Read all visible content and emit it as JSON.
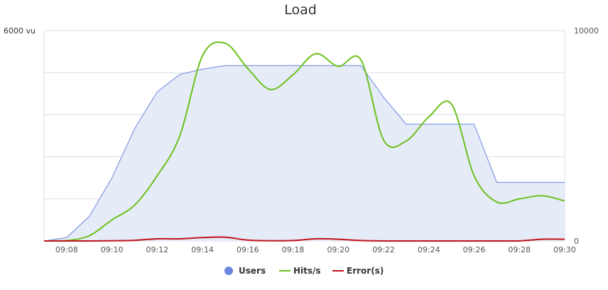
{
  "chart_data": {
    "type": "line",
    "title": "Load",
    "x": [
      "09:07",
      "09:08",
      "09:09",
      "09:10",
      "09:11",
      "09:12",
      "09:13",
      "09:14",
      "09:15",
      "09:16",
      "09:17",
      "09:18",
      "09:19",
      "09:20",
      "09:21",
      "09:22",
      "09:23",
      "09:24",
      "09:25",
      "09:26",
      "09:27",
      "09:28",
      "09:29",
      "09:30"
    ],
    "x_tick_labels": [
      "09:08",
      "09:10",
      "09:12",
      "09:14",
      "09:16",
      "09:18",
      "09:20",
      "09:22",
      "09:24",
      "09:26",
      "09:28",
      "09:30"
    ],
    "y_left": {
      "max_label": "6000 vu",
      "min": 0,
      "max": 6000
    },
    "y_right": {
      "max_label": "10000",
      "min_label": "0",
      "min": 0,
      "max": 10000
    },
    "grid": true,
    "legend_position": "bottom-center",
    "series": [
      {
        "name": "Users",
        "axis": "left",
        "style": "area",
        "color": "#6b86e0",
        "fill": "#e6ebf8",
        "values": [
          0,
          100,
          700,
          1800,
          3200,
          4250,
          4750,
          4900,
          5000,
          5000,
          5000,
          5000,
          5000,
          5000,
          5000,
          4100,
          3330,
          3330,
          3330,
          3330,
          1670,
          1670,
          1670,
          1670
        ]
      },
      {
        "name": "Hits/s",
        "axis": "right",
        "style": "spline",
        "color": "#6cc01c",
        "values": [
          0,
          20,
          250,
          1000,
          1700,
          3100,
          5000,
          8800,
          9400,
          8200,
          7200,
          7900,
          8900,
          8300,
          8600,
          4800,
          4750,
          5900,
          6500,
          3100,
          1850,
          2000,
          2150,
          1900
        ]
      },
      {
        "name": "Error(s)",
        "axis": "right",
        "style": "spline",
        "color": "#c0141c",
        "values": [
          0,
          0,
          0,
          10,
          30,
          100,
          100,
          160,
          180,
          40,
          10,
          20,
          100,
          80,
          20,
          0,
          0,
          0,
          0,
          0,
          0,
          0,
          80,
          80
        ]
      }
    ]
  }
}
